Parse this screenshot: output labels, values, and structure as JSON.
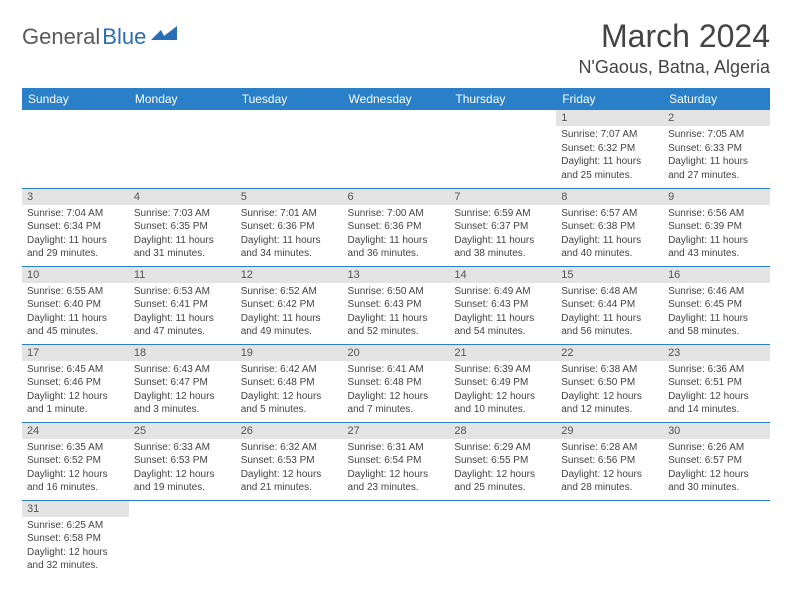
{
  "logo": {
    "part1": "General",
    "part2": "Blue"
  },
  "title": "March 2024",
  "location": "N'Gaous, Batna, Algeria",
  "colors": {
    "header_bg": "#2a7fc9",
    "header_fg": "#ffffff",
    "daynum_bg": "#e3e3e3",
    "border": "#2a7fc9",
    "logo_gray": "#5a5a5a",
    "logo_blue": "#2a6fb5"
  },
  "weekdays": [
    "Sunday",
    "Monday",
    "Tuesday",
    "Wednesday",
    "Thursday",
    "Friday",
    "Saturday"
  ],
  "weeks": [
    [
      null,
      null,
      null,
      null,
      null,
      {
        "n": "1",
        "sr": "Sunrise: 7:07 AM",
        "ss": "Sunset: 6:32 PM",
        "dl1": "Daylight: 11 hours",
        "dl2": "and 25 minutes."
      },
      {
        "n": "2",
        "sr": "Sunrise: 7:05 AM",
        "ss": "Sunset: 6:33 PM",
        "dl1": "Daylight: 11 hours",
        "dl2": "and 27 minutes."
      }
    ],
    [
      {
        "n": "3",
        "sr": "Sunrise: 7:04 AM",
        "ss": "Sunset: 6:34 PM",
        "dl1": "Daylight: 11 hours",
        "dl2": "and 29 minutes."
      },
      {
        "n": "4",
        "sr": "Sunrise: 7:03 AM",
        "ss": "Sunset: 6:35 PM",
        "dl1": "Daylight: 11 hours",
        "dl2": "and 31 minutes."
      },
      {
        "n": "5",
        "sr": "Sunrise: 7:01 AM",
        "ss": "Sunset: 6:36 PM",
        "dl1": "Daylight: 11 hours",
        "dl2": "and 34 minutes."
      },
      {
        "n": "6",
        "sr": "Sunrise: 7:00 AM",
        "ss": "Sunset: 6:36 PM",
        "dl1": "Daylight: 11 hours",
        "dl2": "and 36 minutes."
      },
      {
        "n": "7",
        "sr": "Sunrise: 6:59 AM",
        "ss": "Sunset: 6:37 PM",
        "dl1": "Daylight: 11 hours",
        "dl2": "and 38 minutes."
      },
      {
        "n": "8",
        "sr": "Sunrise: 6:57 AM",
        "ss": "Sunset: 6:38 PM",
        "dl1": "Daylight: 11 hours",
        "dl2": "and 40 minutes."
      },
      {
        "n": "9",
        "sr": "Sunrise: 6:56 AM",
        "ss": "Sunset: 6:39 PM",
        "dl1": "Daylight: 11 hours",
        "dl2": "and 43 minutes."
      }
    ],
    [
      {
        "n": "10",
        "sr": "Sunrise: 6:55 AM",
        "ss": "Sunset: 6:40 PM",
        "dl1": "Daylight: 11 hours",
        "dl2": "and 45 minutes."
      },
      {
        "n": "11",
        "sr": "Sunrise: 6:53 AM",
        "ss": "Sunset: 6:41 PM",
        "dl1": "Daylight: 11 hours",
        "dl2": "and 47 minutes."
      },
      {
        "n": "12",
        "sr": "Sunrise: 6:52 AM",
        "ss": "Sunset: 6:42 PM",
        "dl1": "Daylight: 11 hours",
        "dl2": "and 49 minutes."
      },
      {
        "n": "13",
        "sr": "Sunrise: 6:50 AM",
        "ss": "Sunset: 6:43 PM",
        "dl1": "Daylight: 11 hours",
        "dl2": "and 52 minutes."
      },
      {
        "n": "14",
        "sr": "Sunrise: 6:49 AM",
        "ss": "Sunset: 6:43 PM",
        "dl1": "Daylight: 11 hours",
        "dl2": "and 54 minutes."
      },
      {
        "n": "15",
        "sr": "Sunrise: 6:48 AM",
        "ss": "Sunset: 6:44 PM",
        "dl1": "Daylight: 11 hours",
        "dl2": "and 56 minutes."
      },
      {
        "n": "16",
        "sr": "Sunrise: 6:46 AM",
        "ss": "Sunset: 6:45 PM",
        "dl1": "Daylight: 11 hours",
        "dl2": "and 58 minutes."
      }
    ],
    [
      {
        "n": "17",
        "sr": "Sunrise: 6:45 AM",
        "ss": "Sunset: 6:46 PM",
        "dl1": "Daylight: 12 hours",
        "dl2": "and 1 minute."
      },
      {
        "n": "18",
        "sr": "Sunrise: 6:43 AM",
        "ss": "Sunset: 6:47 PM",
        "dl1": "Daylight: 12 hours",
        "dl2": "and 3 minutes."
      },
      {
        "n": "19",
        "sr": "Sunrise: 6:42 AM",
        "ss": "Sunset: 6:48 PM",
        "dl1": "Daylight: 12 hours",
        "dl2": "and 5 minutes."
      },
      {
        "n": "20",
        "sr": "Sunrise: 6:41 AM",
        "ss": "Sunset: 6:48 PM",
        "dl1": "Daylight: 12 hours",
        "dl2": "and 7 minutes."
      },
      {
        "n": "21",
        "sr": "Sunrise: 6:39 AM",
        "ss": "Sunset: 6:49 PM",
        "dl1": "Daylight: 12 hours",
        "dl2": "and 10 minutes."
      },
      {
        "n": "22",
        "sr": "Sunrise: 6:38 AM",
        "ss": "Sunset: 6:50 PM",
        "dl1": "Daylight: 12 hours",
        "dl2": "and 12 minutes."
      },
      {
        "n": "23",
        "sr": "Sunrise: 6:36 AM",
        "ss": "Sunset: 6:51 PM",
        "dl1": "Daylight: 12 hours",
        "dl2": "and 14 minutes."
      }
    ],
    [
      {
        "n": "24",
        "sr": "Sunrise: 6:35 AM",
        "ss": "Sunset: 6:52 PM",
        "dl1": "Daylight: 12 hours",
        "dl2": "and 16 minutes."
      },
      {
        "n": "25",
        "sr": "Sunrise: 6:33 AM",
        "ss": "Sunset: 6:53 PM",
        "dl1": "Daylight: 12 hours",
        "dl2": "and 19 minutes."
      },
      {
        "n": "26",
        "sr": "Sunrise: 6:32 AM",
        "ss": "Sunset: 6:53 PM",
        "dl1": "Daylight: 12 hours",
        "dl2": "and 21 minutes."
      },
      {
        "n": "27",
        "sr": "Sunrise: 6:31 AM",
        "ss": "Sunset: 6:54 PM",
        "dl1": "Daylight: 12 hours",
        "dl2": "and 23 minutes."
      },
      {
        "n": "28",
        "sr": "Sunrise: 6:29 AM",
        "ss": "Sunset: 6:55 PM",
        "dl1": "Daylight: 12 hours",
        "dl2": "and 25 minutes."
      },
      {
        "n": "29",
        "sr": "Sunrise: 6:28 AM",
        "ss": "Sunset: 6:56 PM",
        "dl1": "Daylight: 12 hours",
        "dl2": "and 28 minutes."
      },
      {
        "n": "30",
        "sr": "Sunrise: 6:26 AM",
        "ss": "Sunset: 6:57 PM",
        "dl1": "Daylight: 12 hours",
        "dl2": "and 30 minutes."
      }
    ],
    [
      {
        "n": "31",
        "sr": "Sunrise: 6:25 AM",
        "ss": "Sunset: 6:58 PM",
        "dl1": "Daylight: 12 hours",
        "dl2": "and 32 minutes."
      },
      null,
      null,
      null,
      null,
      null,
      null
    ]
  ]
}
